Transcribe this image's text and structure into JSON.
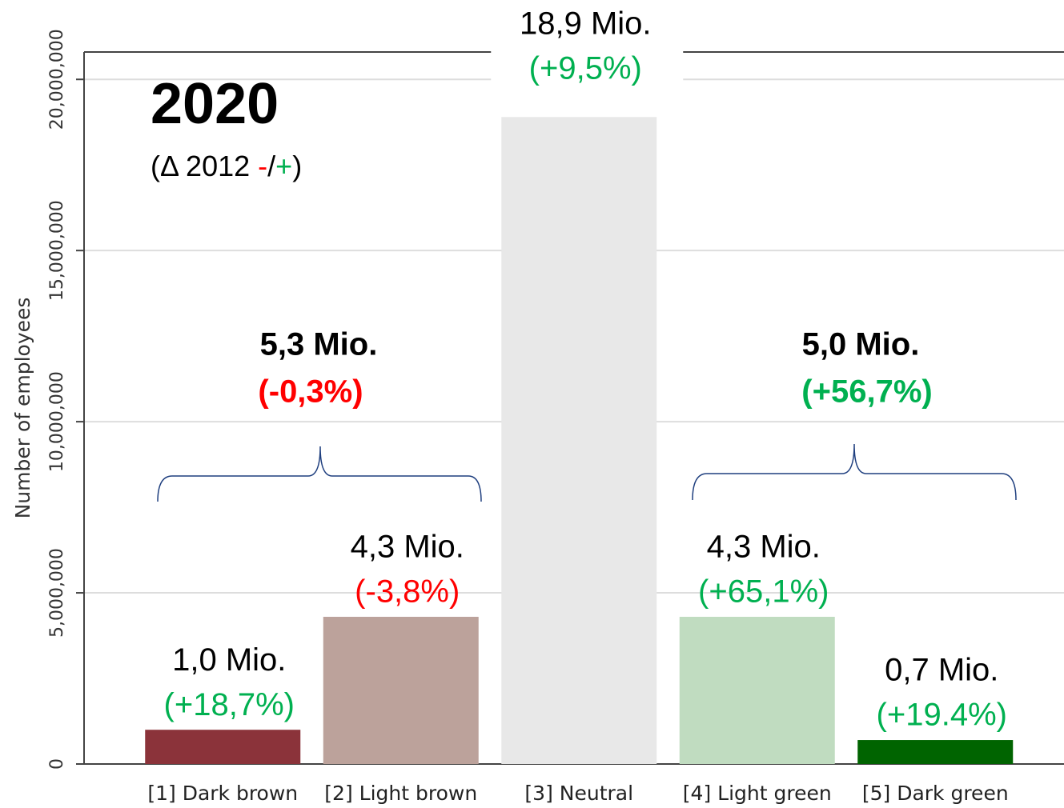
{
  "chart_data": {
    "type": "bar",
    "title": "2020",
    "subtitle_parts": [
      "(Δ 2012 ",
      "-",
      "/",
      "+",
      ")"
    ],
    "y_label": "Number of employees",
    "categories": [
      "[1] Dark brown",
      "[2] Light brown",
      "[3] Neutral",
      "[4] Light green",
      "[5] Dark green"
    ],
    "values": [
      1000000,
      4300000,
      18900000,
      4300000,
      700000
    ],
    "value_labels": [
      "1,0 Mio.",
      "4,3 Mio.",
      "18,9 Mio.",
      "4,3 Mio.",
      "0,7 Mio."
    ],
    "change_labels": [
      "(+18,7%)",
      "(-3,8%)",
      "(+9,5%)",
      "(+65,1%)",
      "(+19.4%)"
    ],
    "colors": [
      "#8b333a",
      "#bca29b",
      "#e8e8e8",
      "#c0dcc0",
      "#006400"
    ],
    "annotations": [
      {
        "text": "5,3 Mio.",
        "change": "(-0,3%)"
      },
      {
        "text": "5,0 Mio.",
        "change": "(+56,7%)"
      }
    ],
    "ylim": [
      0,
      20800000
    ],
    "yticks": [
      {
        "value": 0,
        "label": "0"
      },
      {
        "value": 5000000,
        "label": "5,000,000"
      },
      {
        "value": 10000000,
        "label": "10,000,000"
      },
      {
        "value": 15000000,
        "label": "15,000,000"
      },
      {
        "value": 20000000,
        "label": "20,000,000"
      }
    ],
    "grid": true
  }
}
